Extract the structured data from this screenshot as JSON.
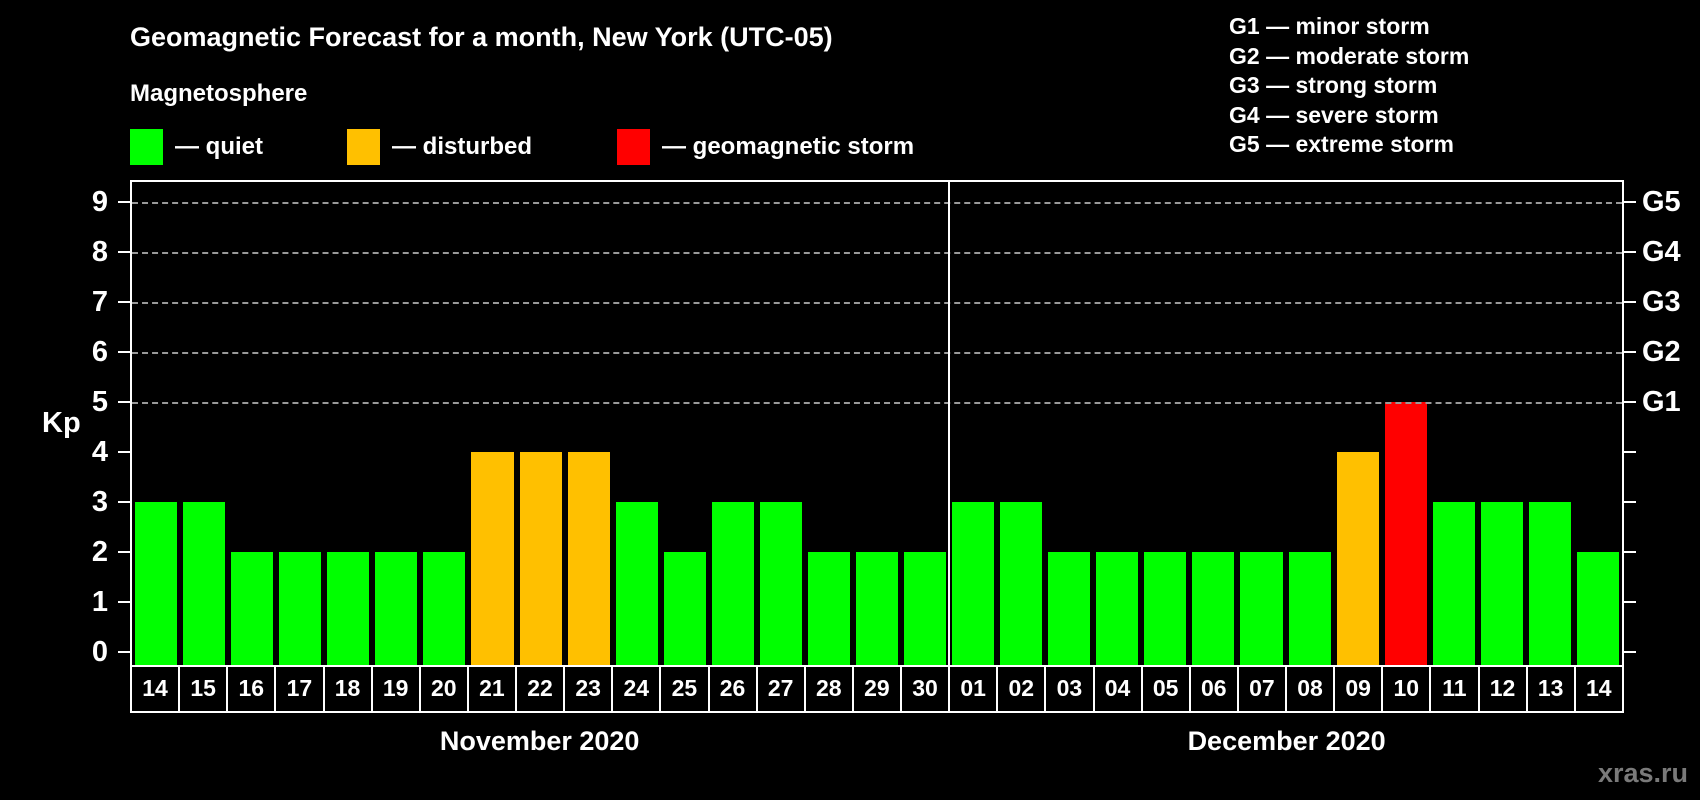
{
  "title": "Geomagnetic Forecast for a month, New York (UTC-05)",
  "subtitle": "Magnetosphere",
  "legend": {
    "items": [
      {
        "key": "quiet",
        "label": "— quiet",
        "color": "#00ff00"
      },
      {
        "key": "disturbed",
        "label": "— disturbed",
        "color": "#ffc000"
      },
      {
        "key": "storm",
        "label": "— geomagnetic storm",
        "color": "#ff0000"
      }
    ]
  },
  "g_scale_legend": [
    {
      "label": "G1 — minor storm"
    },
    {
      "label": "G2 — moderate storm"
    },
    {
      "label": "G3 — strong storm"
    },
    {
      "label": "G4 — severe storm"
    },
    {
      "label": "G5 — extreme storm"
    }
  ],
  "chart_data": {
    "type": "bar",
    "ylabel": "Kp",
    "ylim": [
      0,
      9
    ],
    "yticks": [
      0,
      1,
      2,
      3,
      4,
      5,
      6,
      7,
      8,
      9
    ],
    "gridlines_at": [
      5,
      6,
      7,
      8,
      9
    ],
    "grid": "dashed horizontal at Kp 5-9 only",
    "right_axis_labels": [
      {
        "value": 5,
        "label": "G1"
      },
      {
        "value": 6,
        "label": "G2"
      },
      {
        "value": 7,
        "label": "G3"
      },
      {
        "value": 8,
        "label": "G4"
      },
      {
        "value": 9,
        "label": "G5"
      }
    ],
    "months": [
      {
        "label": "November 2020",
        "days": [
          "14",
          "15",
          "16",
          "17",
          "18",
          "19",
          "20",
          "21",
          "22",
          "23",
          "24",
          "25",
          "26",
          "27",
          "28",
          "29",
          "30"
        ],
        "values": [
          3,
          3,
          2,
          2,
          2,
          2,
          2,
          4,
          4,
          4,
          3,
          2,
          3,
          3,
          2,
          2,
          2
        ],
        "levels": [
          "quiet",
          "quiet",
          "quiet",
          "quiet",
          "quiet",
          "quiet",
          "quiet",
          "disturbed",
          "disturbed",
          "disturbed",
          "quiet",
          "quiet",
          "quiet",
          "quiet",
          "quiet",
          "quiet",
          "quiet"
        ]
      },
      {
        "label": "December 2020",
        "days": [
          "01",
          "02",
          "03",
          "04",
          "05",
          "06",
          "07",
          "08",
          "09",
          "10",
          "11",
          "12",
          "13",
          "14"
        ],
        "values": [
          3,
          3,
          2,
          2,
          2,
          2,
          2,
          2,
          4,
          5,
          3,
          3,
          3,
          2
        ],
        "levels": [
          "quiet",
          "quiet",
          "quiet",
          "quiet",
          "quiet",
          "quiet",
          "quiet",
          "quiet",
          "disturbed",
          "storm",
          "quiet",
          "quiet",
          "quiet",
          "quiet"
        ]
      }
    ]
  },
  "watermark": "xras.ru"
}
